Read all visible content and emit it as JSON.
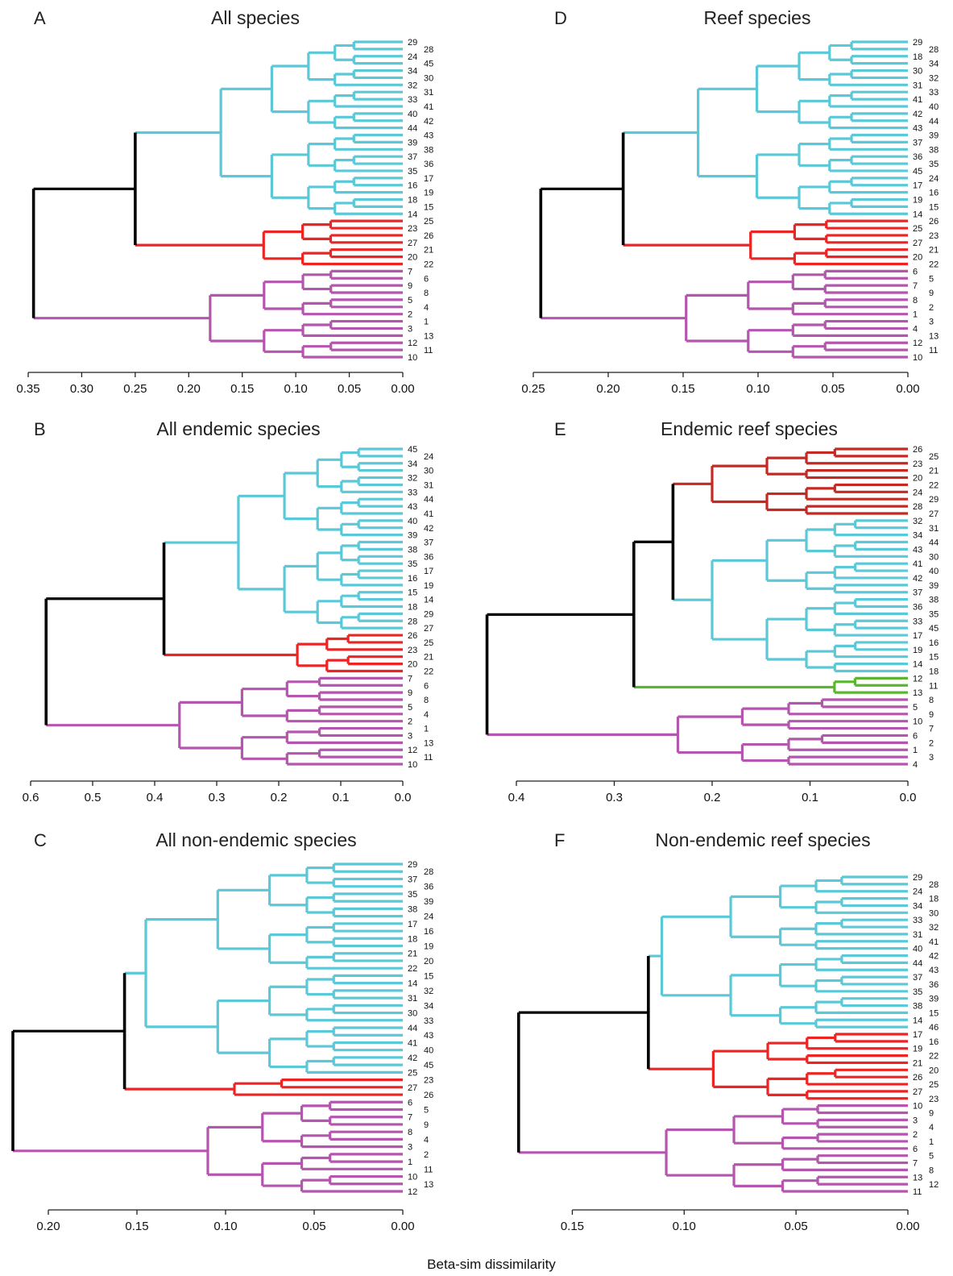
{
  "figure": {
    "xlabel": "Beta-sim dissimilarity"
  },
  "colors": {
    "cyan": "#5bc8d8",
    "red": "#ec2424",
    "darkred": "#c42a22",
    "magenta": "#b455ae",
    "green": "#5cb530",
    "black": "#000000"
  },
  "chart_data": [
    {
      "type": "dendrogram",
      "panel": "A",
      "title": "All species",
      "xlim": [
        0.35,
        0.0
      ],
      "ticks": [
        0.35,
        0.3,
        0.25,
        0.2,
        0.15,
        0.1,
        0.05,
        0.0
      ],
      "tick_labels": [
        "0.35",
        "0.30",
        "0.25",
        "0.20",
        "0.15",
        "0.10",
        "0.05",
        "0.00"
      ],
      "leaves": [
        "29",
        "28",
        "24",
        "45",
        "34",
        "30",
        "32",
        "31",
        "33",
        "41",
        "40",
        "42",
        "44",
        "43",
        "39",
        "38",
        "37",
        "36",
        "35",
        "17",
        "16",
        "19",
        "18",
        "15",
        "14",
        "25",
        "23",
        "26",
        "27",
        "21",
        "20",
        "22",
        "7",
        "6",
        "9",
        "8",
        "5",
        "4",
        "2",
        "1",
        "3",
        "13",
        "12",
        "11",
        "10"
      ],
      "clusters": [
        {
          "color": "cyan",
          "leaves": [
            "29",
            "28",
            "24",
            "45",
            "34",
            "30",
            "32",
            "31",
            "33",
            "41",
            "40",
            "42",
            "44",
            "43",
            "39",
            "38",
            "37",
            "36",
            "35",
            "17",
            "16",
            "19",
            "18",
            "15",
            "14"
          ],
          "height": 0.17
        },
        {
          "color": "red",
          "leaves": [
            "25",
            "23",
            "26",
            "27",
            "21",
            "20",
            "22"
          ],
          "height": 0.13
        },
        {
          "color": "magenta",
          "leaves": [
            "7",
            "6",
            "9",
            "8",
            "5",
            "4",
            "2",
            "1",
            "3",
            "13",
            "12",
            "11",
            "10"
          ],
          "height": 0.18
        }
      ],
      "root_links": [
        {
          "children": [
            0,
            1
          ],
          "height": 0.25
        },
        {
          "children": [
            3,
            2
          ],
          "height": 0.345
        }
      ]
    },
    {
      "type": "dendrogram",
      "panel": "D",
      "title": "Reef species",
      "xlim": [
        0.25,
        0.0
      ],
      "ticks": [
        0.25,
        0.2,
        0.15,
        0.1,
        0.05,
        0.0
      ],
      "tick_labels": [
        "0.25",
        "0.20",
        "0.15",
        "0.10",
        "0.05",
        "0.00"
      ],
      "leaves": [
        "29",
        "28",
        "18",
        "34",
        "30",
        "32",
        "31",
        "33",
        "41",
        "40",
        "42",
        "44",
        "43",
        "39",
        "37",
        "38",
        "36",
        "35",
        "45",
        "24",
        "17",
        "16",
        "19",
        "15",
        "14",
        "26",
        "25",
        "23",
        "27",
        "21",
        "20",
        "22",
        "6",
        "5",
        "7",
        "9",
        "8",
        "2",
        "1",
        "3",
        "4",
        "13",
        "12",
        "11",
        "10"
      ],
      "clusters": [
        {
          "color": "cyan",
          "leaves": [
            "29",
            "28",
            "18",
            "34",
            "30",
            "32",
            "31",
            "33",
            "41",
            "40",
            "42",
            "44",
            "43",
            "39",
            "37",
            "38",
            "36",
            "35",
            "45",
            "24",
            "17",
            "16",
            "19",
            "15",
            "14"
          ],
          "height": 0.14
        },
        {
          "color": "red",
          "leaves": [
            "26",
            "25",
            "23",
            "27",
            "21",
            "20",
            "22"
          ],
          "height": 0.105
        },
        {
          "color": "magenta",
          "leaves": [
            "6",
            "5",
            "7",
            "9",
            "8",
            "2",
            "1",
            "3",
            "4",
            "13",
            "12",
            "11",
            "10"
          ],
          "height": 0.148
        }
      ],
      "root_links": [
        {
          "children": [
            0,
            1
          ],
          "height": 0.19
        },
        {
          "children": [
            3,
            2
          ],
          "height": 0.245
        }
      ]
    },
    {
      "type": "dendrogram",
      "panel": "B",
      "title": "All endemic species",
      "xlim": [
        0.6,
        0.0
      ],
      "ticks": [
        0.6,
        0.5,
        0.4,
        0.3,
        0.2,
        0.1,
        0.0
      ],
      "tick_labels": [
        "0.6",
        "0.5",
        "0.4",
        "0.3",
        "0.2",
        "0.1",
        "0.0"
      ],
      "leaves": [
        "45",
        "24",
        "34",
        "30",
        "32",
        "31",
        "33",
        "44",
        "43",
        "41",
        "40",
        "42",
        "39",
        "37",
        "38",
        "36",
        "35",
        "17",
        "16",
        "19",
        "15",
        "14",
        "18",
        "29",
        "28",
        "27",
        "26",
        "25",
        "23",
        "21",
        "20",
        "22",
        "7",
        "6",
        "9",
        "8",
        "5",
        "4",
        "2",
        "1",
        "3",
        "13",
        "12",
        "11",
        "10"
      ],
      "clusters": [
        {
          "color": "cyan",
          "leaves": [
            "45",
            "24",
            "34",
            "30",
            "32",
            "31",
            "33",
            "44",
            "43",
            "41",
            "40",
            "42",
            "39",
            "37",
            "38",
            "36",
            "35",
            "17",
            "16",
            "19",
            "15",
            "14",
            "18",
            "29",
            "28",
            "27"
          ],
          "height": 0.265
        },
        {
          "color": "red",
          "leaves": [
            "26",
            "25",
            "23",
            "21",
            "20",
            "22"
          ],
          "height": 0.17
        },
        {
          "color": "magenta",
          "leaves": [
            "7",
            "6",
            "9",
            "8",
            "5",
            "4",
            "2",
            "1",
            "3",
            "13",
            "12",
            "11",
            "10"
          ],
          "height": 0.36
        }
      ],
      "root_links": [
        {
          "children": [
            0,
            1
          ],
          "height": 0.385
        },
        {
          "children": [
            3,
            2
          ],
          "height": 0.575
        }
      ]
    },
    {
      "type": "dendrogram",
      "panel": "E",
      "title": "Endemic reef species",
      "xlim": [
        0.4,
        0.0
      ],
      "ticks": [
        0.4,
        0.3,
        0.2,
        0.1,
        0.0
      ],
      "tick_labels": [
        "0.4",
        "0.3",
        "0.2",
        "0.1",
        "0.0"
      ],
      "leaves": [
        "26",
        "25",
        "23",
        "21",
        "20",
        "22",
        "24",
        "29",
        "28",
        "27",
        "32",
        "31",
        "34",
        "44",
        "43",
        "30",
        "41",
        "40",
        "42",
        "39",
        "37",
        "38",
        "36",
        "35",
        "33",
        "45",
        "17",
        "16",
        "19",
        "15",
        "14",
        "18",
        "12",
        "11",
        "13",
        "8",
        "5",
        "9",
        "10",
        "7",
        "6",
        "2",
        "1",
        "3",
        "4"
      ],
      "clusters": [
        {
          "color": "darkred",
          "leaves": [
            "26",
            "25",
            "23",
            "21",
            "20",
            "22",
            "24",
            "29",
            "28",
            "27"
          ],
          "height": 0.2
        },
        {
          "color": "cyan",
          "leaves": [
            "32",
            "31",
            "34",
            "44",
            "43",
            "30",
            "41",
            "40",
            "42",
            "39",
            "37",
            "38",
            "36",
            "35",
            "33",
            "45",
            "17",
            "16",
            "19",
            "15",
            "14",
            "18"
          ],
          "height": 0.2
        },
        {
          "color": "green",
          "leaves": [
            "12",
            "11",
            "13"
          ],
          "height": 0.075
        },
        {
          "color": "magenta",
          "leaves": [
            "8",
            "5",
            "9",
            "10",
            "7",
            "6",
            "2",
            "1",
            "3",
            "4"
          ],
          "height": 0.235
        }
      ],
      "root_links": [
        {
          "children": [
            0,
            1
          ],
          "height": 0.24
        },
        {
          "children": [
            4,
            2
          ],
          "height": 0.28
        },
        {
          "children": [
            5,
            3
          ],
          "height": 0.43
        }
      ]
    },
    {
      "type": "dendrogram",
      "panel": "C",
      "title": "All non-endemic species",
      "xlim": [
        0.22,
        0.0
      ],
      "ticks": [
        0.2,
        0.15,
        0.1,
        0.05,
        0.0
      ],
      "tick_labels": [
        "0.20",
        "0.15",
        "0.10",
        "0.05",
        "0.00"
      ],
      "leaves": [
        "29",
        "28",
        "37",
        "36",
        "35",
        "39",
        "38",
        "24",
        "17",
        "16",
        "18",
        "19",
        "21",
        "20",
        "22",
        "15",
        "14",
        "32",
        "31",
        "34",
        "30",
        "33",
        "44",
        "43",
        "41",
        "40",
        "42",
        "45",
        "25",
        "23",
        "27",
        "26",
        "6",
        "5",
        "7",
        "9",
        "8",
        "4",
        "3",
        "2",
        "1",
        "11",
        "10",
        "13",
        "12"
      ],
      "clusters": [
        {
          "color": "cyan",
          "leaves": [
            "29",
            "28",
            "37",
            "36",
            "35",
            "39",
            "38",
            "24",
            "17",
            "16",
            "18",
            "19",
            "21",
            "20",
            "22",
            "15",
            "14",
            "32",
            "31",
            "34",
            "30",
            "33",
            "44",
            "43",
            "41",
            "40",
            "42",
            "45",
            "25"
          ],
          "height": 0.145
        },
        {
          "color": "red",
          "leaves": [
            "23",
            "27",
            "26"
          ],
          "height": 0.095
        },
        {
          "color": "magenta",
          "leaves": [
            "6",
            "5",
            "7",
            "9",
            "8",
            "4",
            "3",
            "2",
            "1",
            "11",
            "10",
            "13",
            "12"
          ],
          "height": 0.11
        }
      ],
      "root_links": [
        {
          "children": [
            0,
            1
          ],
          "height": 0.157
        },
        {
          "children": [
            3,
            2
          ],
          "height": 0.22
        }
      ]
    },
    {
      "type": "dendrogram",
      "panel": "F",
      "title": "Non-endemic reef species",
      "xlim": [
        0.175,
        0.0
      ],
      "ticks": [
        0.15,
        0.1,
        0.05,
        0.0
      ],
      "tick_labels": [
        "0.15",
        "0.10",
        "0.05",
        "0.00"
      ],
      "leaves": [
        "29",
        "28",
        "24",
        "18",
        "34",
        "30",
        "33",
        "32",
        "31",
        "41",
        "40",
        "42",
        "44",
        "43",
        "37",
        "36",
        "35",
        "39",
        "38",
        "15",
        "14",
        "46",
        "17",
        "16",
        "19",
        "22",
        "21",
        "20",
        "26",
        "25",
        "27",
        "23",
        "10",
        "9",
        "3",
        "4",
        "2",
        "1",
        "6",
        "5",
        "7",
        "8",
        "13",
        "12",
        "11"
      ],
      "clusters": [
        {
          "color": "cyan",
          "leaves": [
            "29",
            "28",
            "24",
            "18",
            "34",
            "30",
            "33",
            "32",
            "31",
            "41",
            "40",
            "42",
            "44",
            "43",
            "37",
            "36",
            "35",
            "39",
            "38",
            "15",
            "14",
            "46"
          ],
          "height": 0.11
        },
        {
          "color": "red",
          "leaves": [
            "17",
            "16",
            "19",
            "22",
            "21",
            "20",
            "26",
            "25",
            "27",
            "23"
          ],
          "height": 0.087
        },
        {
          "color": "magenta",
          "leaves": [
            "10",
            "9",
            "3",
            "4",
            "2",
            "1",
            "6",
            "5",
            "7",
            "8",
            "13",
            "12",
            "11"
          ],
          "height": 0.108
        }
      ],
      "root_links": [
        {
          "children": [
            0,
            1
          ],
          "height": 0.116
        },
        {
          "children": [
            3,
            2
          ],
          "height": 0.174
        }
      ]
    }
  ]
}
